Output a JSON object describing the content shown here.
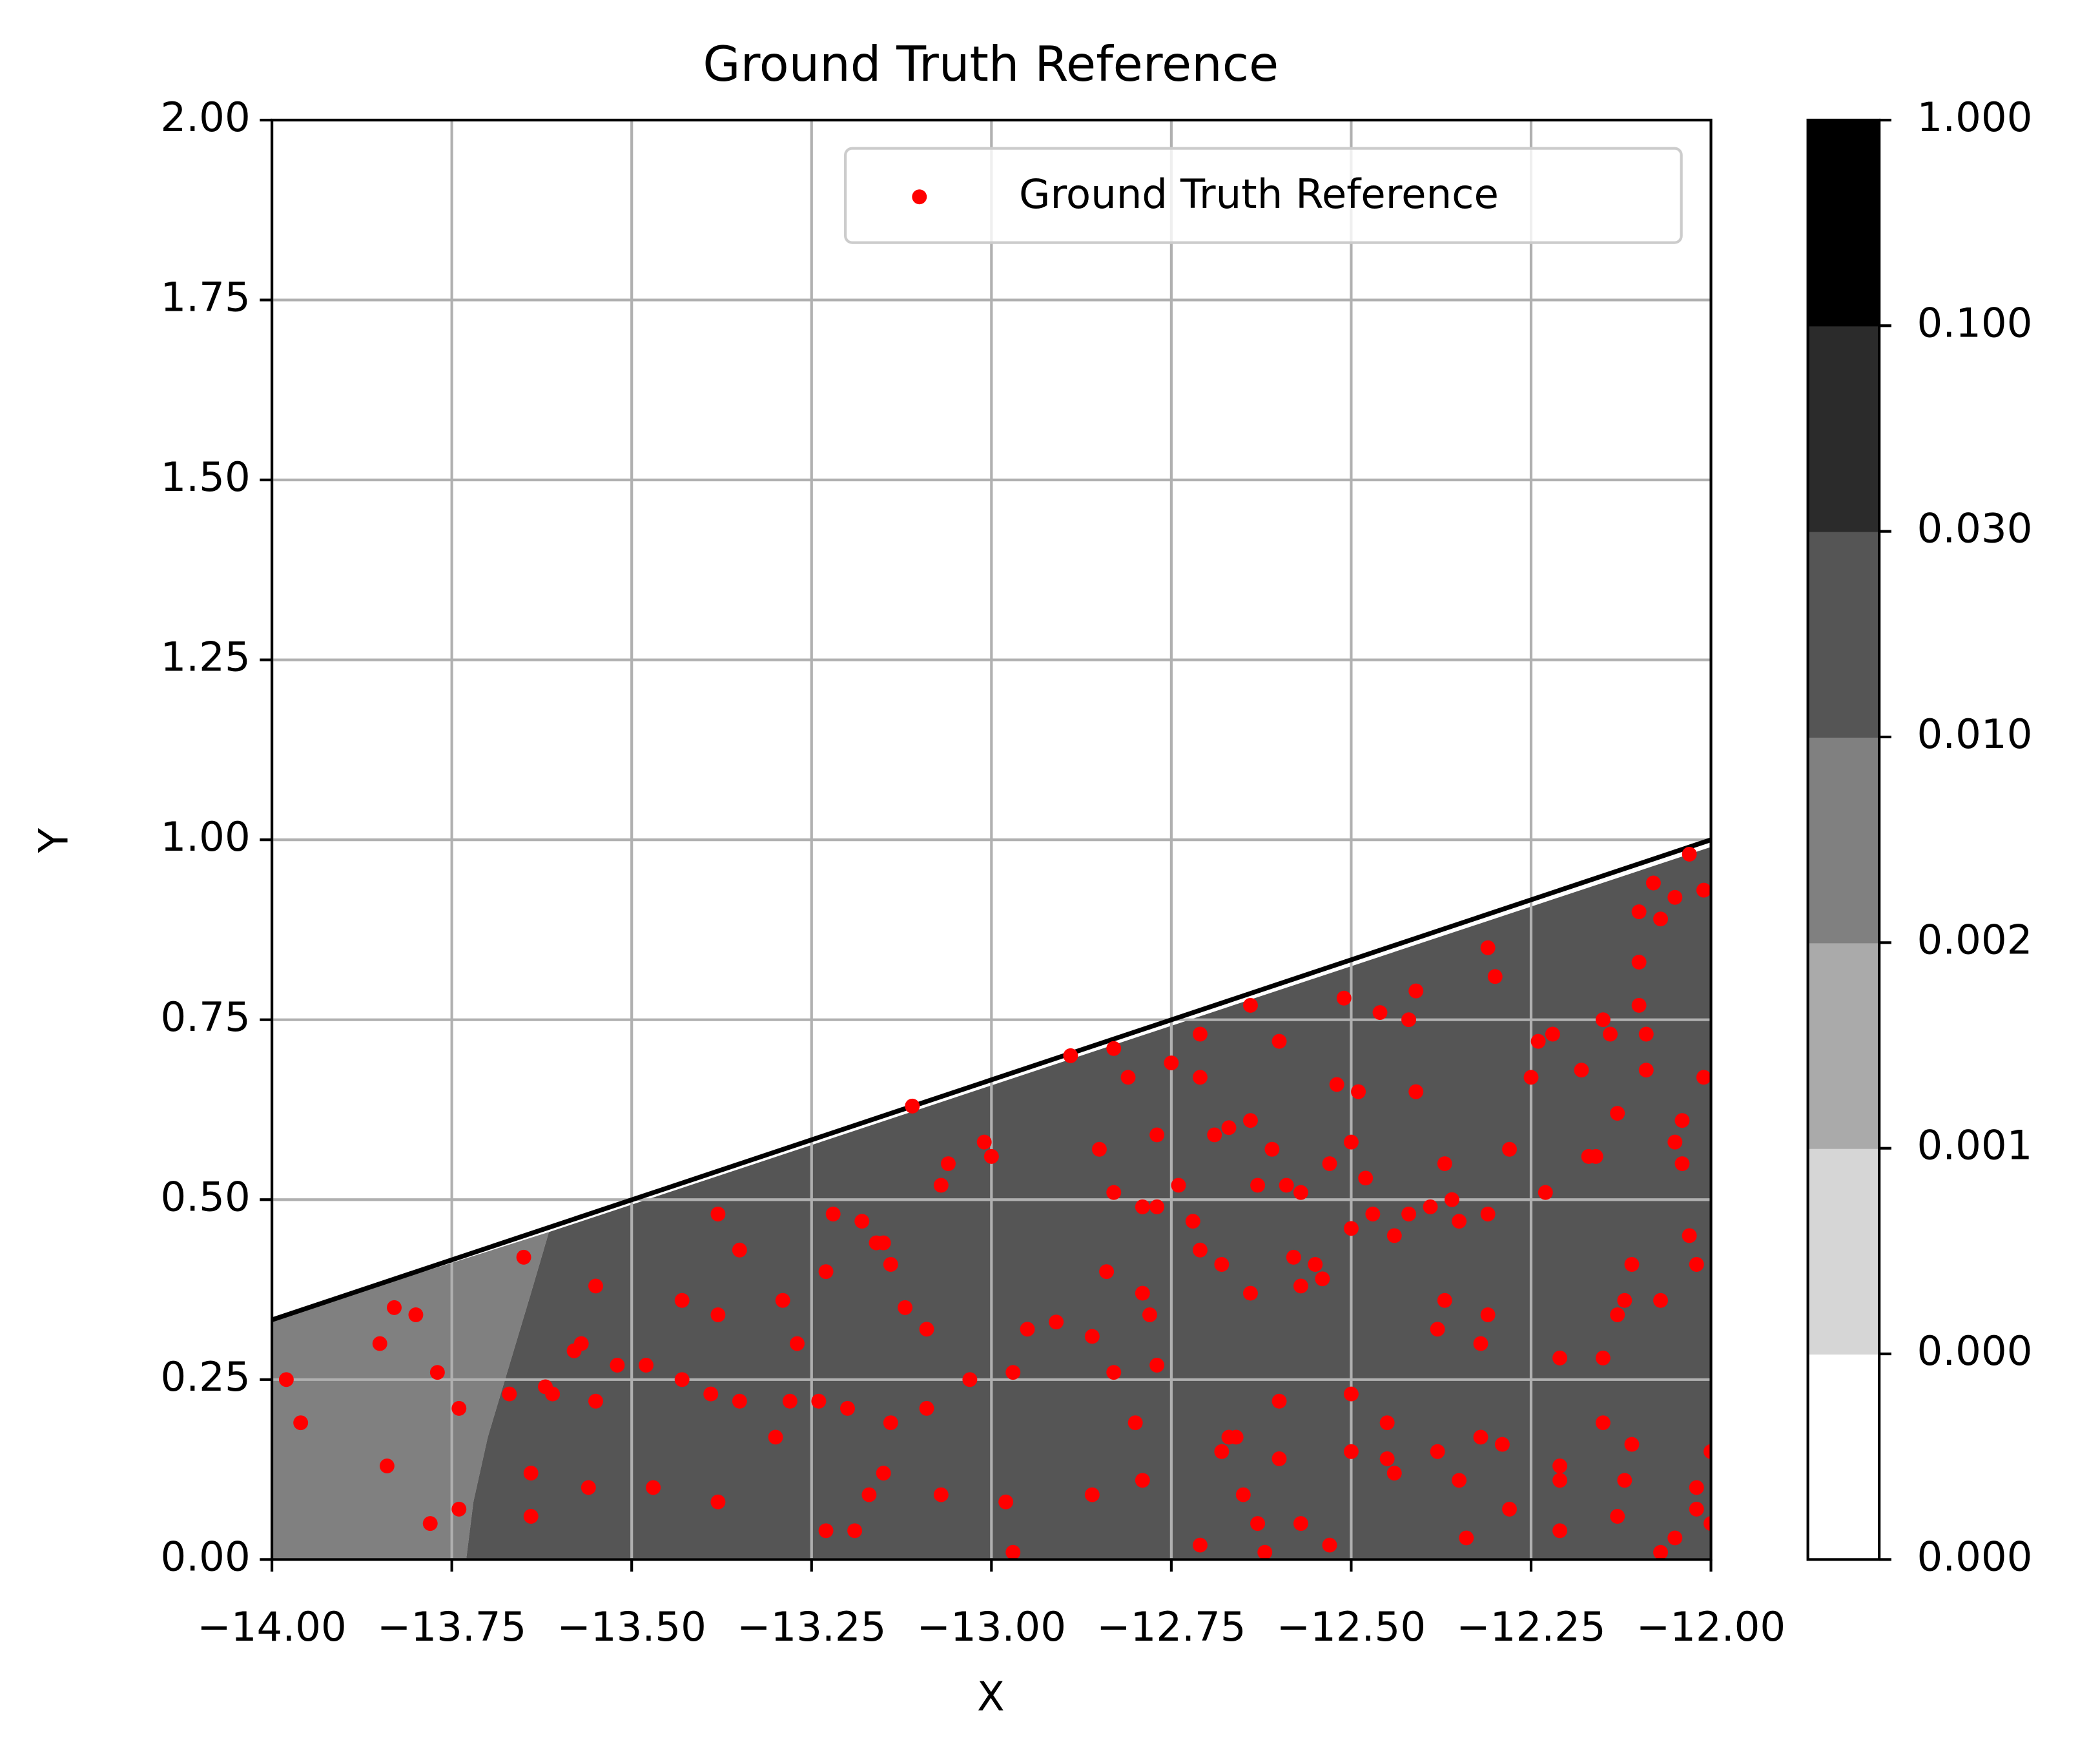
{
  "chart_data": {
    "type": "contour",
    "title": "Ground Truth Reference",
    "x_label": "X",
    "y_label": "Y",
    "xlim": [
      -14,
      -12
    ],
    "ylim": [
      0,
      2
    ],
    "xticks": [
      {
        "value": -14,
        "label": "−14.00"
      },
      {
        "value": -13.75,
        "label": "−13.75"
      },
      {
        "value": -13.5,
        "label": "−13.50"
      },
      {
        "value": -13.25,
        "label": "−13.25"
      },
      {
        "value": -13,
        "label": "−13.00"
      },
      {
        "value": -12.75,
        "label": "−12.75"
      },
      {
        "value": -12.5,
        "label": "−12.50"
      },
      {
        "value": -12.25,
        "label": "−12.25"
      },
      {
        "value": -12,
        "label": "−12.00"
      }
    ],
    "yticks": [
      {
        "value": 0,
        "label": "0.00"
      },
      {
        "value": 0.25,
        "label": "0.25"
      },
      {
        "value": 0.5,
        "label": "0.50"
      },
      {
        "value": 0.75,
        "label": "0.75"
      },
      {
        "value": 1,
        "label": "1.00"
      },
      {
        "value": 1.25,
        "label": "1.25"
      },
      {
        "value": 1.5,
        "label": "1.50"
      },
      {
        "value": 1.75,
        "label": "1.75"
      },
      {
        "value": 2,
        "label": "2.00"
      }
    ],
    "grid": true,
    "legend": "upper right",
    "regions": [
      {
        "color": "#808080",
        "x": [
          -14,
          -13.73,
          -13.72,
          -13.7,
          -13.67,
          -13.64,
          -13.615,
          -14
        ],
        "y": [
          0,
          0,
          0.08,
          0.17,
          0.27,
          0.37,
          0.455,
          0.333
        ]
      },
      {
        "color": "#555555",
        "x": [
          -13.73,
          -12,
          -12,
          -13.615,
          -13.64,
          -13.67,
          -13.7,
          -13.72
        ],
        "y": [
          0,
          0,
          0.99,
          0.455,
          0.37,
          0.27,
          0.17,
          0.08
        ]
      }
    ],
    "boundary": {
      "color": "#000000",
      "x": [
        -14,
        -12
      ],
      "y": [
        0.333,
        1
      ]
    },
    "series": [
      {
        "name": "Ground Truth Reference",
        "color": "#ff0000",
        "x": [
          -13.98,
          -13.96,
          -13.85,
          -13.84,
          -13.83,
          -13.8,
          -13.78,
          -13.77,
          -13.74,
          -13.74,
          -13.67,
          -13.65,
          -13.64,
          -13.64,
          -13.62,
          -13.61,
          -13.58,
          -13.57,
          -13.55,
          -13.55,
          -13.56,
          -13.52,
          -13.48,
          -13.47,
          -13.43,
          -13.43,
          -13.39,
          -13.38,
          -13.38,
          -13.38,
          -13.35,
          -13.35,
          -13.3,
          -13.29,
          -13.28,
          -13.27,
          -13.24,
          -13.23,
          -13.23,
          -13.22,
          -13.2,
          -13.19,
          -13.18,
          -13.17,
          -13.16,
          -13.15,
          -13.14,
          -13.14,
          -13.15,
          -13.12,
          -13.11,
          -13.09,
          -13.09,
          -13.07,
          -13.06,
          -13.07,
          -13.03,
          -13.01,
          -13.0,
          -12.98,
          -12.97,
          -12.97,
          -12.95,
          -12.91,
          -12.89,
          -12.86,
          -12.86,
          -12.85,
          -12.84,
          -12.83,
          -12.83,
          -12.83,
          -12.81,
          -12.8,
          -12.79,
          -12.79,
          -12.79,
          -12.78,
          -12.77,
          -12.77,
          -12.77,
          -12.75,
          -12.74,
          -12.72,
          -12.71,
          -12.71,
          -12.71,
          -12.71,
          -12.69,
          -12.68,
          -12.67,
          -12.67,
          -12.68,
          -12.66,
          -12.65,
          -12.64,
          -12.64,
          -12.64,
          -12.63,
          -12.63,
          -12.62,
          -12.61,
          -12.6,
          -12.6,
          -12.6,
          -12.59,
          -12.58,
          -12.57,
          -12.57,
          -12.57,
          -12.55,
          -12.54,
          -12.53,
          -12.52,
          -12.53,
          -12.51,
          -12.5,
          -12.5,
          -12.5,
          -12.5,
          -12.49,
          -12.48,
          -12.47,
          -12.46,
          -12.45,
          -12.45,
          -12.44,
          -12.44,
          -12.42,
          -12.42,
          -12.41,
          -12.41,
          -12.39,
          -12.38,
          -12.37,
          -12.38,
          -12.37,
          -12.36,
          -12.35,
          -12.35,
          -12.34,
          -12.32,
          -12.32,
          -12.31,
          -12.31,
          -12.31,
          -12.3,
          -12.28,
          -12.29,
          -12.28,
          -12.25,
          -12.24,
          -12.23,
          -12.22,
          -12.21,
          -12.21,
          -12.21,
          -12.21,
          -12.18,
          -12.17,
          -12.16,
          -12.15,
          -12.15,
          -12.15,
          -12.14,
          -12.13,
          -12.13,
          -12.13,
          -12.12,
          -12.12,
          -12.11,
          -12.11,
          -12.1,
          -12.1,
          -12.1,
          -12.09,
          -12.09,
          -12.08,
          -12.07,
          -12.07,
          -12.05,
          -12.05,
          -12.05,
          -12.04,
          -12.04,
          -12.03,
          -12.03,
          -12.02,
          -12.02,
          -12.02,
          -12.01,
          -12.01,
          -12.0,
          -12.0,
          -12.07
        ],
        "y": [
          0.25,
          0.19,
          0.3,
          0.13,
          0.35,
          0.34,
          0.05,
          0.26,
          0.21,
          0.07,
          0.23,
          0.42,
          0.12,
          0.06,
          0.24,
          0.23,
          0.29,
          0.3,
          0.38,
          0.22,
          0.1,
          0.27,
          0.27,
          0.1,
          0.36,
          0.25,
          0.23,
          0.34,
          0.08,
          0.48,
          0.22,
          0.43,
          0.17,
          0.36,
          0.22,
          0.3,
          0.22,
          0.4,
          0.04,
          0.48,
          0.21,
          0.04,
          0.47,
          0.09,
          0.44,
          0.44,
          0.41,
          0.19,
          0.12,
          0.35,
          0.63,
          0.21,
          0.32,
          0.52,
          0.55,
          0.09,
          0.25,
          0.58,
          0.56,
          0.08,
          0.26,
          0.01,
          0.32,
          0.33,
          0.7,
          0.31,
          0.09,
          0.57,
          0.4,
          0.26,
          0.71,
          0.51,
          0.67,
          0.19,
          0.49,
          0.11,
          0.37,
          0.34,
          0.59,
          0.49,
          0.27,
          0.69,
          0.52,
          0.47,
          0.43,
          0.67,
          0.73,
          0.02,
          0.59,
          0.15,
          0.6,
          0.17,
          0.41,
          0.17,
          0.09,
          0.37,
          0.61,
          0.77,
          0.52,
          0.05,
          0.01,
          0.57,
          0.22,
          0.72,
          0.14,
          0.52,
          0.42,
          0.05,
          0.51,
          0.38,
          0.41,
          0.39,
          0.55,
          0.66,
          0.02,
          0.78,
          0.46,
          0.58,
          0.15,
          0.23,
          0.65,
          0.53,
          0.48,
          0.76,
          0.19,
          0.14,
          0.12,
          0.45,
          0.48,
          0.75,
          0.79,
          0.65,
          0.49,
          0.15,
          0.55,
          0.32,
          0.36,
          0.5,
          0.11,
          0.47,
          0.03,
          0.17,
          0.3,
          0.34,
          0.48,
          0.85,
          0.81,
          0.57,
          0.16,
          0.07,
          0.67,
          0.72,
          0.51,
          0.73,
          0.13,
          0.11,
          0.28,
          0.04,
          0.68,
          0.56,
          0.56,
          0.19,
          0.75,
          0.28,
          0.73,
          0.62,
          0.06,
          0.34,
          0.11,
          0.36,
          0.16,
          0.41,
          0.9,
          0.83,
          0.77,
          0.73,
          0.68,
          0.94,
          0.89,
          0.36,
          0.92,
          0.58,
          0.03,
          0.61,
          0.55,
          0.98,
          0.45,
          0.41,
          0.1,
          0.07,
          0.67,
          0.93,
          0.15,
          0.05,
          0.01
        ]
      }
    ],
    "colorbar": {
      "levels": [
        {
          "value": 0,
          "label": "0.000"
        },
        {
          "value": 0.0001,
          "label": "0.000"
        },
        {
          "value": 0.001,
          "label": "0.001"
        },
        {
          "value": 0.002,
          "label": "0.002"
        },
        {
          "value": 0.01,
          "label": "0.010"
        },
        {
          "value": 0.03,
          "label": "0.030"
        },
        {
          "value": 0.1,
          "label": "0.100"
        },
        {
          "value": 1,
          "label": "1.000"
        }
      ],
      "colors": [
        "#ffffff",
        "#d6d6d6",
        "#aaaaaa",
        "#808080",
        "#555555",
        "#2b2b2b",
        "#000000"
      ]
    }
  }
}
